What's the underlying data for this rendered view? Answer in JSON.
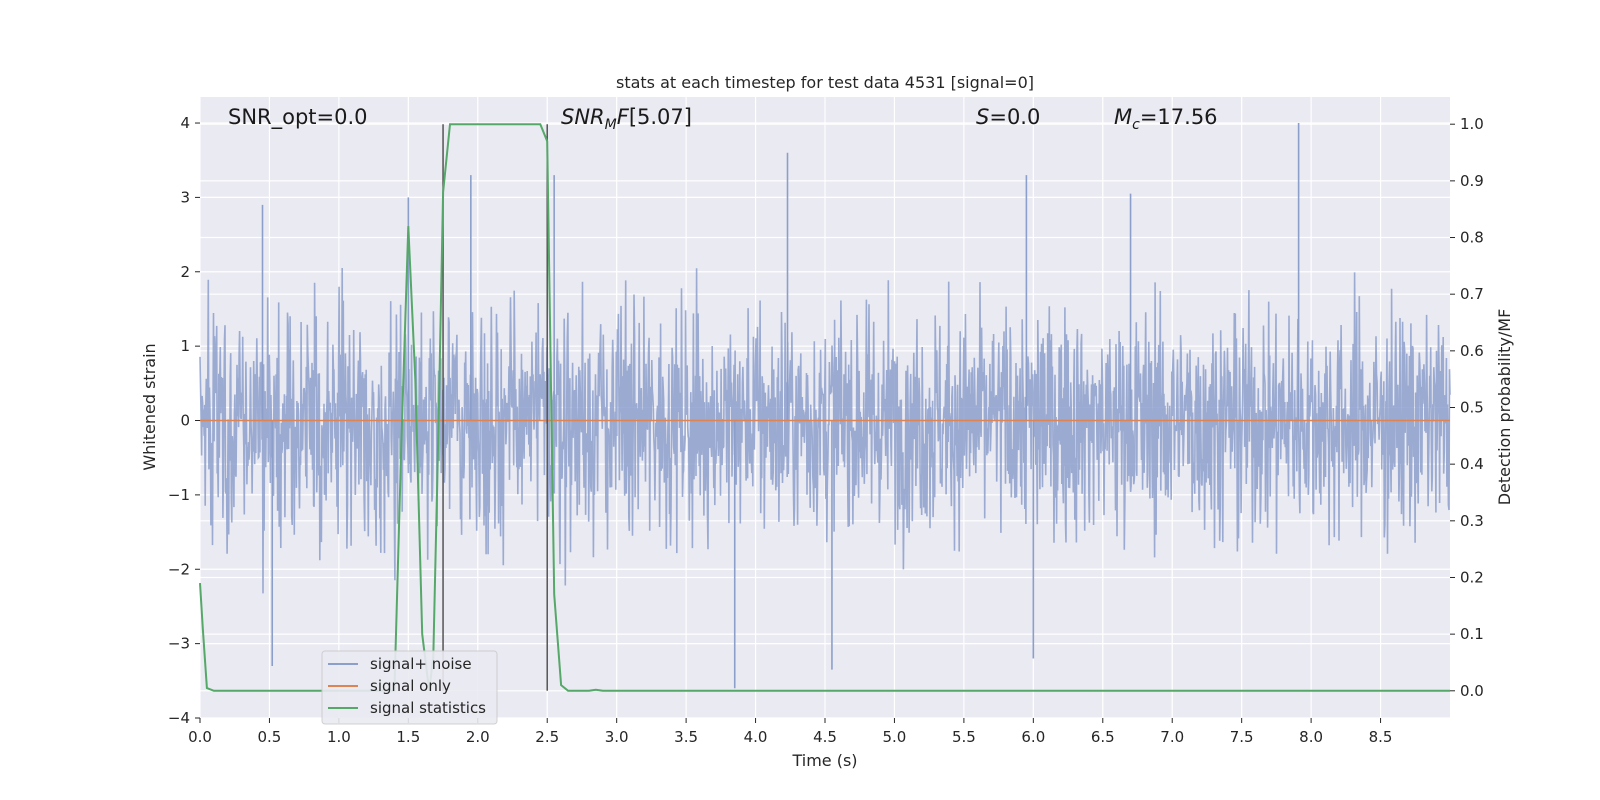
{
  "chart_data": {
    "type": "line",
    "title": "stats at each timestep for test data 4531 [signal=0]",
    "xlabel": "Time (s)",
    "ylabel_left": "Whitened strain",
    "ylabel_right": "Detection probability/MF",
    "xlim": [
      0.0,
      9.0
    ],
    "ylim_left": [
      -4.0,
      4.35
    ],
    "ylim_right": [
      -0.048,
      1.048
    ],
    "x_ticks": [
      "0.0",
      "0.5",
      "1.0",
      "1.5",
      "2.0",
      "2.5",
      "3.0",
      "3.5",
      "4.0",
      "4.5",
      "5.0",
      "5.5",
      "6.0",
      "6.5",
      "7.0",
      "7.5",
      "8.0",
      "8.5"
    ],
    "y_ticks_left": [
      "4",
      "3",
      "2",
      "1",
      "0",
      "−1",
      "−2",
      "−3",
      "−4"
    ],
    "y_ticks_right": [
      "1.0",
      "0.9",
      "0.8",
      "0.7",
      "0.6",
      "0.5",
      "0.4",
      "0.3",
      "0.2",
      "0.1",
      "0.0"
    ],
    "grid": true,
    "legend_position": "lower-left",
    "annotations": {
      "snr_opt": "SNR_opt=0.0",
      "snr_mf": "[5.07]",
      "s_value": "=0.0",
      "mc_value": "=17.56"
    },
    "vertical_lines_x": [
      1.75,
      2.5
    ],
    "series": [
      {
        "name": "signal+ noise",
        "color": "#8c9fcb",
        "axis": "left",
        "description_values": "whitened noise, sampled ~ N(0,1) between roughly -3.6 and 4.0",
        "peaks": [
          [
            0.45,
            2.9
          ],
          [
            1.5,
            3.0
          ],
          [
            1.95,
            3.3
          ],
          [
            2.55,
            3.3
          ],
          [
            4.23,
            3.6
          ],
          [
            5.95,
            3.3
          ],
          [
            6.7,
            3.05
          ],
          [
            7.91,
            4.0
          ],
          [
            3.85,
            -3.6
          ],
          [
            0.52,
            -3.3
          ],
          [
            4.55,
            -3.35
          ],
          [
            6.0,
            -3.2
          ]
        ]
      },
      {
        "name": "signal only",
        "color": "#dd8452",
        "axis": "left",
        "x": [
          0.0,
          9.0
        ],
        "y": [
          0.0,
          0.0
        ]
      },
      {
        "name": "signal statistics",
        "color": "#55a868",
        "axis": "right",
        "x": [
          0.0,
          0.02,
          0.05,
          0.1,
          0.15,
          0.3,
          1.0,
          1.4,
          1.45,
          1.5,
          1.55,
          1.6,
          1.65,
          1.68,
          1.72,
          1.75,
          1.8,
          2.0,
          2.3,
          2.45,
          2.5,
          2.55,
          2.6,
          2.65,
          2.7,
          2.8,
          2.85,
          2.9,
          3.0,
          9.0
        ],
        "y": [
          0.19,
          0.11,
          0.005,
          0.0,
          0.0,
          0.0,
          0.0,
          0.0,
          0.44,
          0.82,
          0.55,
          0.1,
          0.0,
          0.06,
          0.5,
          0.88,
          1.0,
          1.0,
          1.0,
          1.0,
          0.97,
          0.17,
          0.01,
          0.0,
          0.0,
          0.0,
          0.002,
          0.0,
          0.0,
          0.0
        ]
      }
    ]
  }
}
